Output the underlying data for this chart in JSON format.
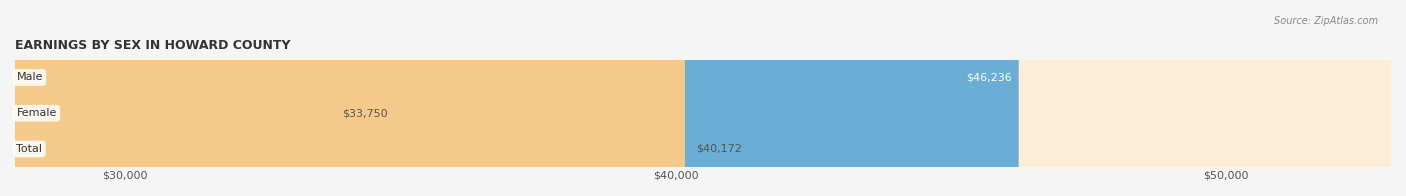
{
  "title": "EARNINGS BY SEX IN HOWARD COUNTY",
  "source": "Source: ZipAtlas.com",
  "categories": [
    "Male",
    "Female",
    "Total"
  ],
  "values": [
    46236,
    33750,
    40172
  ],
  "bar_colors": [
    "#6aaed6",
    "#f4a9c0",
    "#f5c98a"
  ],
  "bar_bg_colors": [
    "#ddeef8",
    "#fde8ef",
    "#fdecd6"
  ],
  "label_colors": [
    "#ffffff",
    "#555555",
    "#555555"
  ],
  "value_labels": [
    "$46,236",
    "$33,750",
    "$40,172"
  ],
  "xmin": 28000,
  "xmax": 53000,
  "xticks": [
    30000,
    40000,
    50000
  ],
  "xtick_labels": [
    "$30,000",
    "$40,000",
    "$50,000"
  ],
  "figsize": [
    14.06,
    1.96
  ],
  "dpi": 100,
  "background_color": "#f0f0f0"
}
